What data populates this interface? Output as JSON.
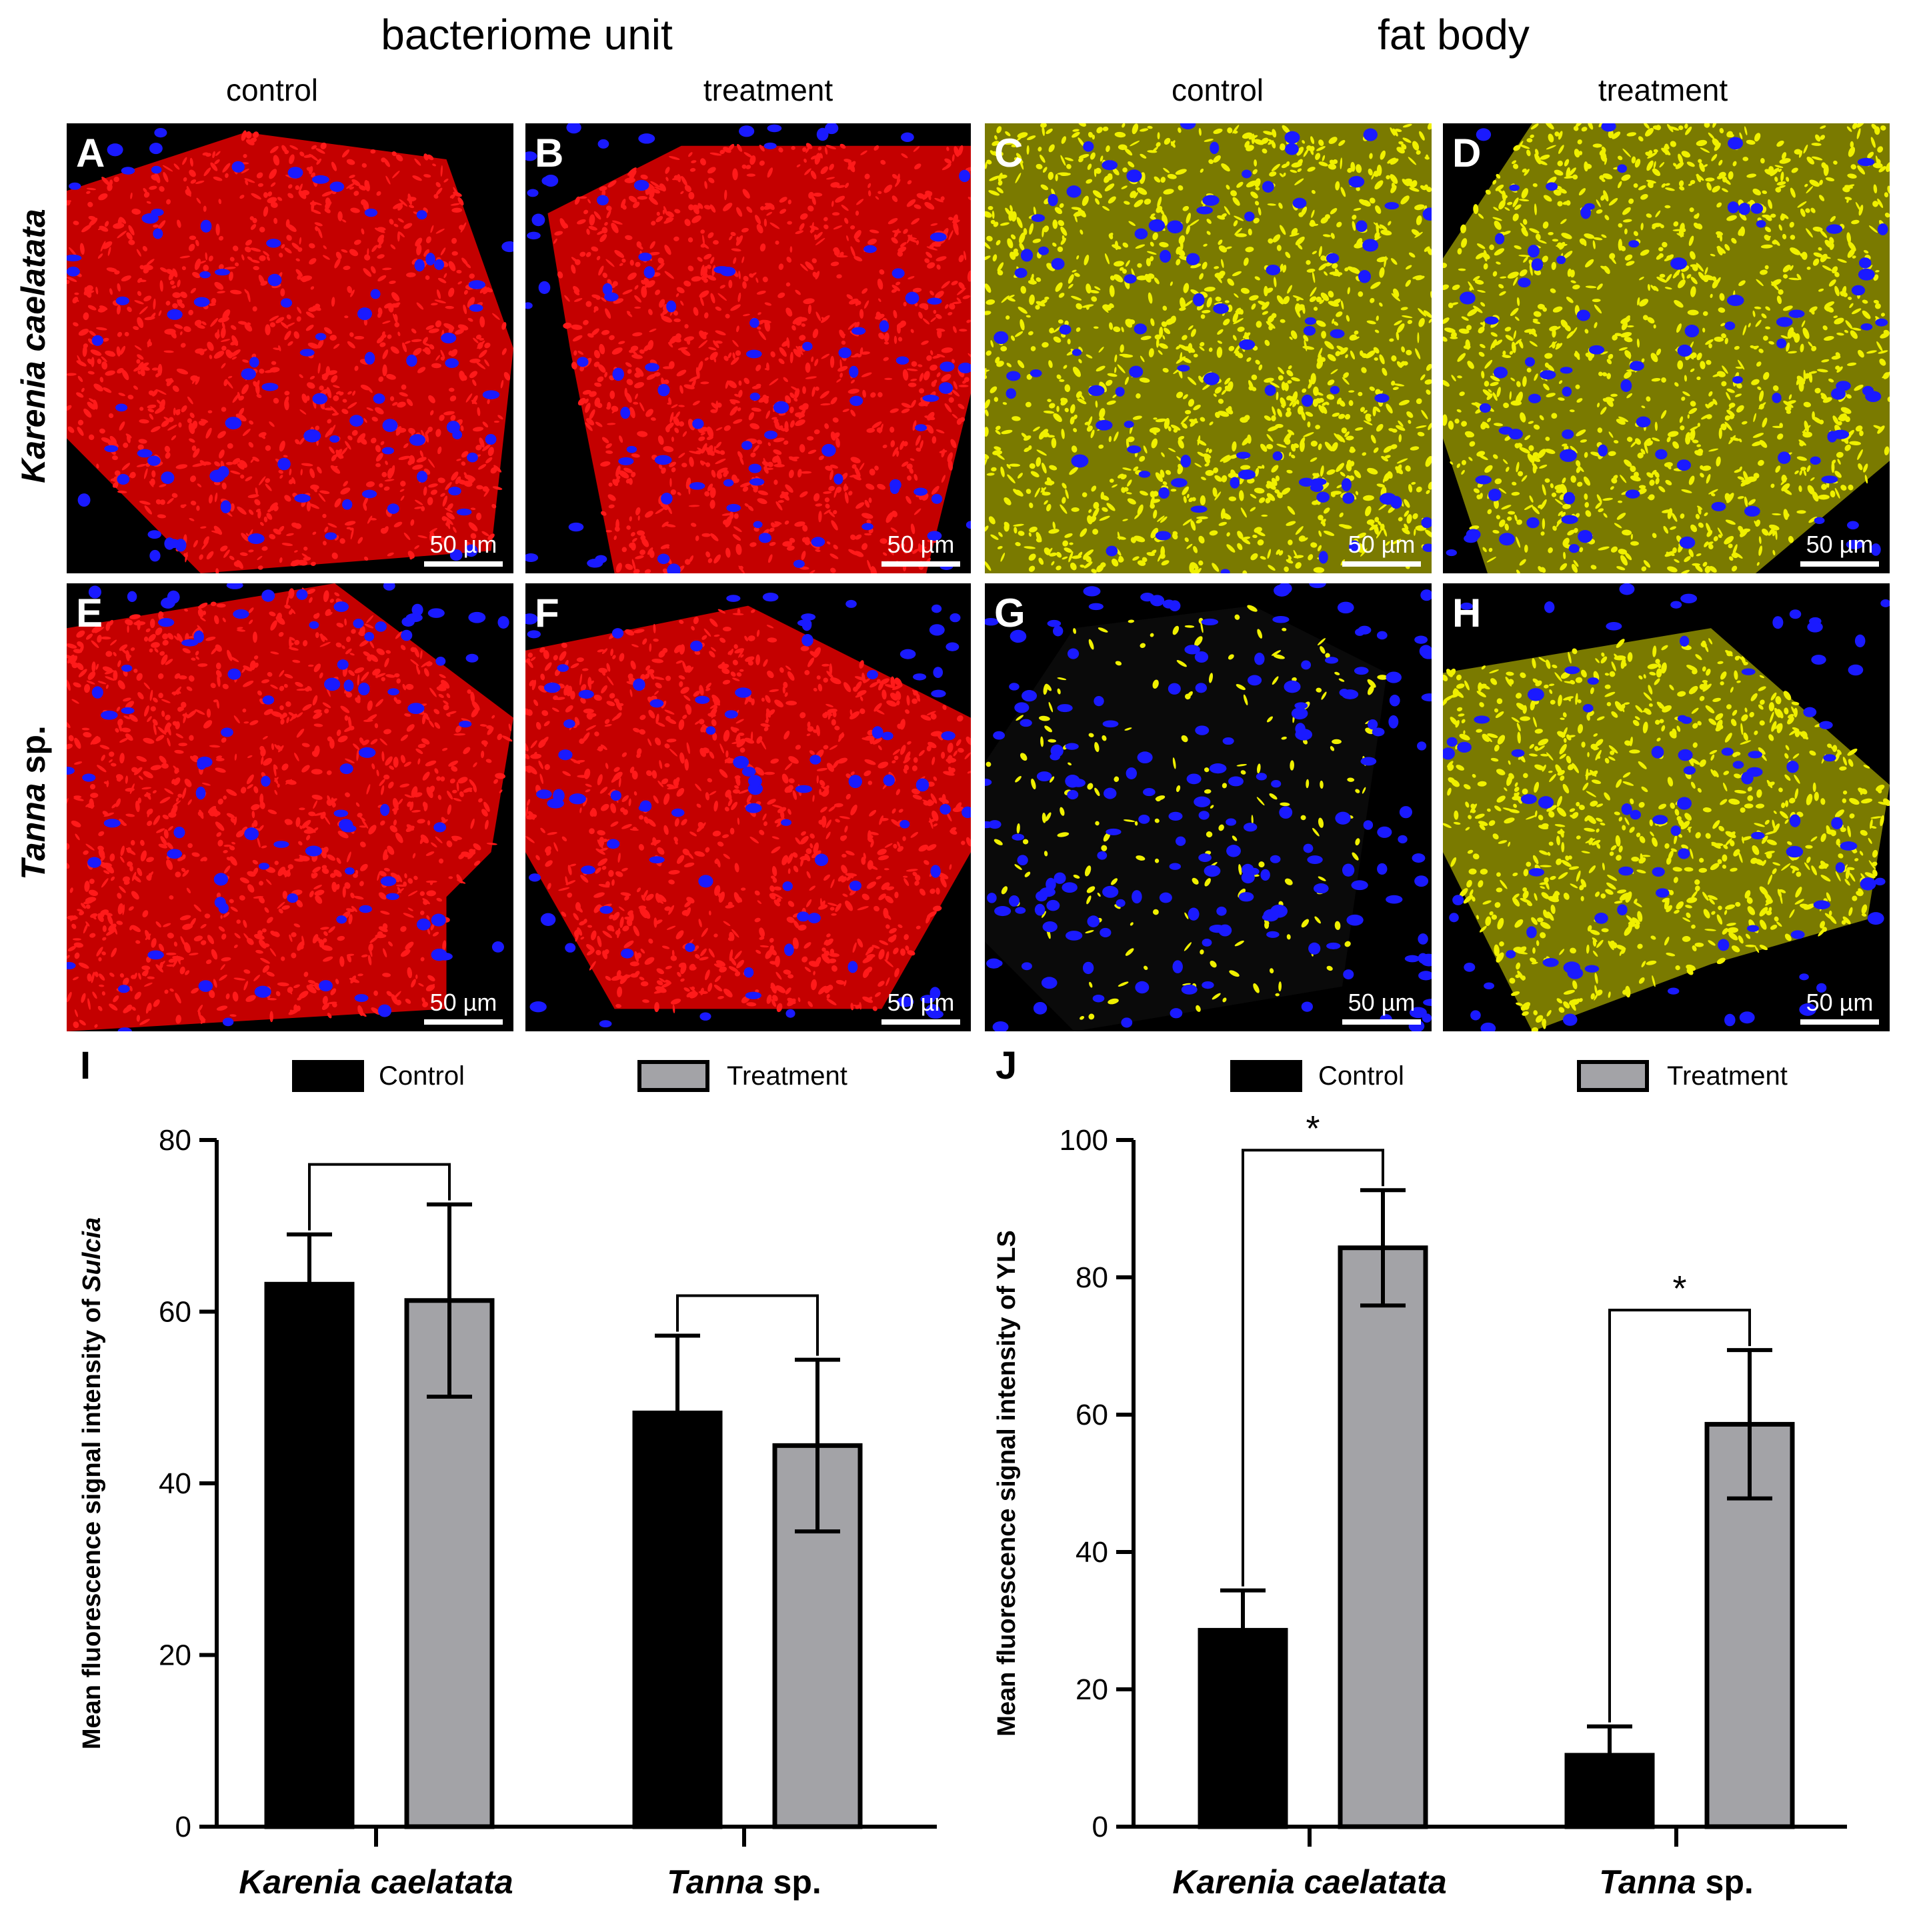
{
  "headers": {
    "group_left": "bacteriome unit",
    "group_right": "fat body",
    "col1": "control",
    "col2": "treatment",
    "col3": "control",
    "col4": "treatment"
  },
  "row_labels": {
    "row1": "Karenia caelatata",
    "row2_italic": "Tanna",
    "row2_plain": " sp."
  },
  "panels": [
    {
      "letter": "A",
      "scale": "50 µm",
      "stain": "red"
    },
    {
      "letter": "B",
      "scale": "50 µm",
      "stain": "red"
    },
    {
      "letter": "C",
      "scale": "50 µm",
      "stain": "yellow"
    },
    {
      "letter": "D",
      "scale": "50 µm",
      "stain": "yellow"
    },
    {
      "letter": "E",
      "scale": "50 µm",
      "stain": "red"
    },
    {
      "letter": "F",
      "scale": "50 µm",
      "stain": "red"
    },
    {
      "letter": "G",
      "scale": "50 µm",
      "stain": "yellow"
    },
    {
      "letter": "H",
      "scale": "50 µm",
      "stain": "yellow"
    }
  ],
  "colors": {
    "control": "#000000",
    "treatment": "#a3a3a7",
    "red_stain": "#ff1a1a",
    "yellow_stain": "#f0f000",
    "nuclei": "#1a1aff"
  },
  "chart_data": [
    {
      "type": "bar",
      "letter": "I",
      "categories": [
        "Karenia caelatata",
        "Tanna sp."
      ],
      "category_parts": [
        [
          "Karenia caelatata",
          ""
        ],
        [
          "Tanna",
          " sp."
        ]
      ],
      "series": [
        {
          "name": "Control",
          "values": [
            63.2,
            48.2
          ],
          "error": [
            5.8,
            9.0
          ]
        },
        {
          "name": "Treatment",
          "values": [
            61.3,
            44.4
          ],
          "error": [
            11.2,
            10.0
          ]
        }
      ],
      "ylabel_pre": "Mean fluorescence signal intensity of ",
      "ylabel_em": "Sulcia",
      "ylim": [
        0,
        80
      ],
      "yticks": [
        0,
        20,
        40,
        60,
        80
      ],
      "brackets": [
        {
          "group": 0,
          "label": ""
        },
        {
          "group": 1,
          "label": ""
        }
      ],
      "legend": "top"
    },
    {
      "type": "bar",
      "letter": "J",
      "categories": [
        "Karenia caelatata",
        "Tanna sp."
      ],
      "category_parts": [
        [
          "Karenia caelatata",
          ""
        ],
        [
          "Tanna",
          " sp."
        ]
      ],
      "series": [
        {
          "name": "Control",
          "values": [
            28.6,
            10.4
          ],
          "error": [
            5.8,
            4.2
          ]
        },
        {
          "name": "Treatment",
          "values": [
            84.3,
            58.6
          ],
          "error": [
            8.4,
            10.8
          ]
        }
      ],
      "ylabel_pre": "Mean fluorescence signal intensity of YLS",
      "ylabel_em": "",
      "ylim": [
        0,
        100
      ],
      "yticks": [
        0,
        20,
        40,
        60,
        80,
        100
      ],
      "brackets": [
        {
          "group": 0,
          "label": "*"
        },
        {
          "group": 1,
          "label": "*"
        }
      ],
      "legend": "top"
    }
  ]
}
